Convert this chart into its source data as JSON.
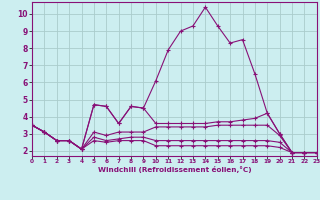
{
  "xlabel": "Windchill (Refroidissement éolien,°C)",
  "background_color": "#cceef0",
  "grid_color": "#aacccc",
  "line_color": "#881177",
  "x": [
    0,
    1,
    2,
    3,
    4,
    5,
    6,
    7,
    8,
    9,
    10,
    11,
    12,
    13,
    14,
    15,
    16,
    17,
    18,
    19,
    20,
    21,
    22,
    23
  ],
  "series": [
    [
      3.5,
      3.1,
      2.6,
      2.6,
      2.1,
      4.7,
      4.6,
      3.6,
      4.6,
      4.5,
      3.6,
      3.6,
      3.6,
      3.6,
      3.6,
      3.7,
      3.7,
      3.8,
      3.9,
      4.2,
      3.0,
      1.9,
      1.9,
      1.9
    ],
    [
      3.5,
      3.1,
      2.6,
      2.6,
      2.1,
      3.1,
      2.9,
      3.1,
      3.1,
      3.1,
      3.4,
      3.4,
      3.4,
      3.4,
      3.4,
      3.5,
      3.5,
      3.5,
      3.5,
      3.5,
      2.9,
      1.9,
      1.9,
      1.9
    ],
    [
      3.5,
      3.1,
      2.6,
      2.6,
      2.1,
      2.8,
      2.6,
      2.7,
      2.8,
      2.8,
      2.6,
      2.6,
      2.6,
      2.6,
      2.6,
      2.6,
      2.6,
      2.6,
      2.6,
      2.6,
      2.5,
      1.9,
      1.9,
      1.9
    ],
    [
      3.5,
      3.1,
      2.6,
      2.6,
      2.1,
      2.6,
      2.5,
      2.6,
      2.6,
      2.6,
      2.3,
      2.3,
      2.3,
      2.3,
      2.3,
      2.3,
      2.3,
      2.3,
      2.3,
      2.3,
      2.2,
      1.9,
      1.9,
      1.9
    ],
    [
      3.5,
      3.1,
      2.6,
      2.6,
      2.1,
      4.7,
      4.6,
      3.6,
      4.6,
      4.5,
      6.1,
      7.9,
      9.0,
      9.3,
      10.4,
      9.3,
      8.3,
      8.5,
      6.5,
      4.2,
      3.0,
      1.9,
      1.9,
      1.9
    ]
  ],
  "xlim": [
    0,
    23
  ],
  "ylim": [
    1.7,
    10.7
  ],
  "yticks": [
    2,
    3,
    4,
    5,
    6,
    7,
    8,
    9,
    10
  ],
  "xticks": [
    0,
    1,
    2,
    3,
    4,
    5,
    6,
    7,
    8,
    9,
    10,
    11,
    12,
    13,
    14,
    15,
    16,
    17,
    18,
    19,
    20,
    21,
    22,
    23
  ]
}
